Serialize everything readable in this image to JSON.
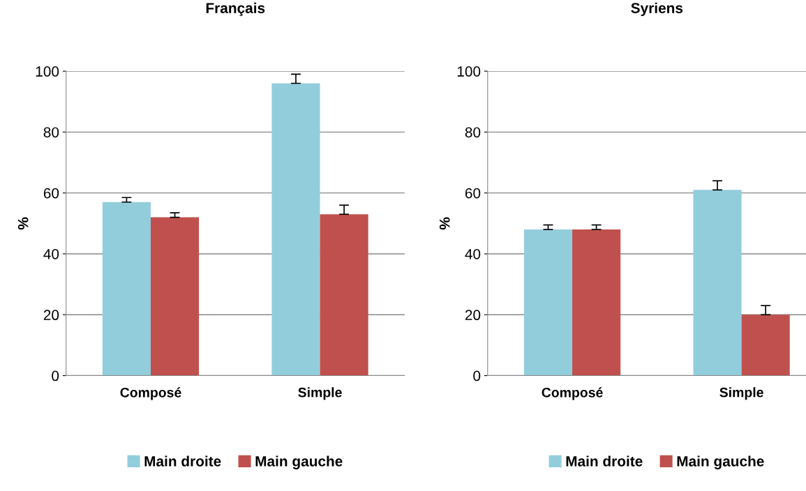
{
  "chart_data": [
    {
      "type": "bar",
      "title": "Français",
      "ylabel": "%",
      "categories": [
        "Composé",
        "Simple"
      ],
      "series": [
        {
          "name": "Main droite",
          "color": "#92cddc",
          "values": [
            57,
            96
          ],
          "errors": [
            [
              57,
              58.5
            ],
            [
              96,
              99
            ]
          ]
        },
        {
          "name": "Main gauche",
          "color": "#c0504d",
          "values": [
            52,
            53
          ],
          "errors": [
            [
              52,
              53.5
            ],
            [
              53,
              56
            ]
          ]
        }
      ],
      "ylim": [
        0,
        100
      ],
      "yticks": [
        0,
        20,
        40,
        60,
        80,
        100
      ],
      "grid": "y",
      "legend": "bottom"
    },
    {
      "type": "bar",
      "title": "Syriens",
      "ylabel": "%",
      "categories": [
        "Composé",
        "Simple"
      ],
      "series": [
        {
          "name": "Main droite",
          "color": "#92cddc",
          "values": [
            48,
            61
          ],
          "errors": [
            [
              48,
              49.5
            ],
            [
              61,
              64
            ]
          ]
        },
        {
          "name": "Main gauche",
          "color": "#c0504d",
          "values": [
            48,
            20
          ],
          "errors": [
            [
              48,
              49.5
            ],
            [
              20,
              23
            ]
          ]
        }
      ],
      "ylim": [
        0,
        100
      ],
      "yticks": [
        0,
        20,
        40,
        60,
        80,
        100
      ],
      "grid": "y",
      "legend": "bottom"
    }
  ]
}
